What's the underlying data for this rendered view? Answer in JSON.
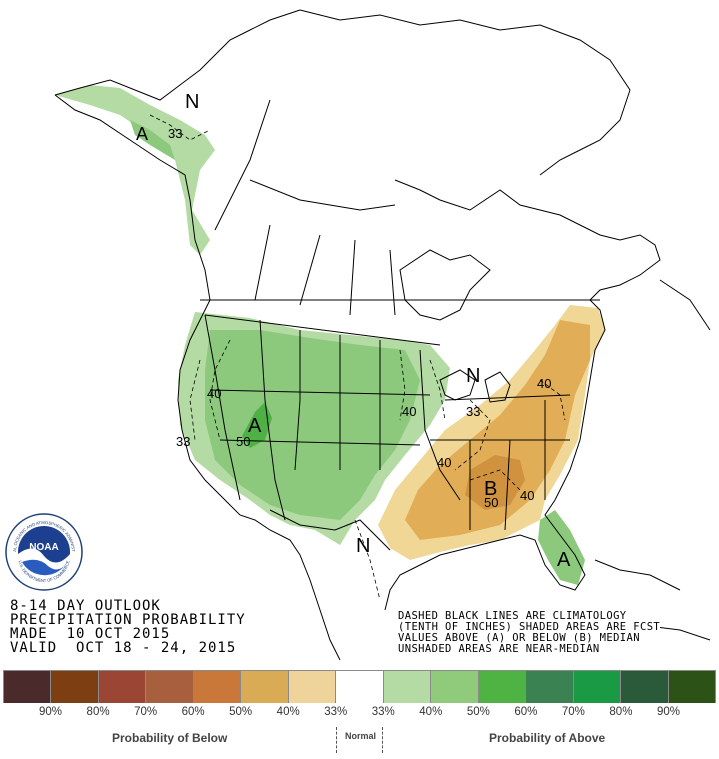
{
  "map": {
    "labels": {
      "n_northwest": "N",
      "a_alaska": "A",
      "c33_alaska": "33",
      "a_west": "A",
      "c50_west": "50",
      "c40_west": "40",
      "c33_west": "33",
      "c40_plains": "40",
      "n_greatlakes": "N",
      "c33_east": "33",
      "c40_northeast": "40",
      "c40_south": "40",
      "b_southeast": "B",
      "c50_southeast": "50",
      "c40_southeast": "40",
      "n_texas": "N",
      "a_florida": "A"
    },
    "colors": {
      "above_40": "#b3dba3",
      "above_50": "#8cc97d",
      "above_60": "#4fb045",
      "below_40": "#e1ad56",
      "below_50": "#d0923f",
      "below_33": "#f0d796",
      "land": "#ffffff",
      "outline": "#000000"
    }
  },
  "title": {
    "line1": "8-14 DAY OUTLOOK",
    "line2": "PRECIPITATION PROBABILITY",
    "line3": "MADE  10 OCT 2015",
    "line4": "VALID  OCT 18 - 24, 2015"
  },
  "notes": {
    "line1": "DASHED BLACK LINES ARE CLIMATOLOGY",
    "line2": "(TENTH OF INCHES) SHADED AREAS ARE FCST",
    "line3": "VALUES ABOVE (A) OR BELOW (B) MEDIAN",
    "line4": "UNSHADED AREAS ARE NEAR-MEDIAN"
  },
  "logo": {
    "center": "NOAA",
    "ring": "NATIONAL OCEANIC AND ATMOSPHERIC ADMINISTRATION",
    "ring_bottom": "U.S. DEPARTMENT OF COMMERCE"
  },
  "legend": {
    "swatches": [
      "#4a2a2a",
      "#7d3f12",
      "#9b4634",
      "#a85f3e",
      "#c9783a",
      "#d9ab54",
      "#eed39a",
      "#ffffff",
      "#b5dba4",
      "#8fcb7b",
      "#4fb343",
      "#3b8252",
      "#1a9a45",
      "#2a5a3a",
      "#2d5218"
    ],
    "ticks": [
      "90%",
      "80%",
      "70%",
      "60%",
      "50%",
      "40%",
      "33%",
      "33%",
      "40%",
      "50%",
      "60%",
      "70%",
      "80%",
      "90%"
    ],
    "below_label": "Probability of Below",
    "normal_label": "Normal",
    "above_label": "Probability of Above"
  }
}
